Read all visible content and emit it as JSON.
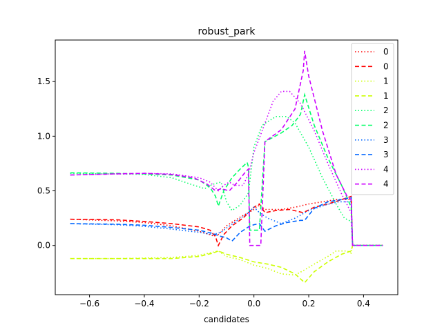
{
  "chart_data": {
    "type": "line",
    "title": "robust_park",
    "xlabel": "candidates",
    "ylabel": "",
    "xlim": [
      -0.725,
      0.525
    ],
    "ylim": [
      -0.45,
      1.88
    ],
    "xticks": [
      -0.6,
      -0.4,
      -0.2,
      0.0,
      0.2,
      0.4
    ],
    "xtick_labels": [
      "−0.6",
      "−0.4",
      "−0.2",
      "0.0",
      "0.2",
      "0.4"
    ],
    "yticks": [
      0.0,
      0.5,
      1.0,
      1.5
    ],
    "ytick_labels": [
      "0.0",
      "0.5",
      "1.0",
      "1.5"
    ],
    "grid": false,
    "legend_position": "top-right",
    "series": [
      {
        "name": "0",
        "color": "#ff0000",
        "style": "dotted",
        "points": [
          [
            -0.67,
            0.24
          ],
          [
            -0.5,
            0.225
          ],
          [
            -0.4,
            0.21
          ],
          [
            -0.3,
            0.18
          ],
          [
            -0.2,
            0.13
          ],
          [
            -0.15,
            0.09
          ],
          [
            -0.13,
            0.1
          ],
          [
            -0.1,
            0.18
          ],
          [
            -0.05,
            0.26
          ],
          [
            -0.02,
            0.3
          ],
          [
            0.0,
            0.33
          ],
          [
            0.02,
            0.37
          ],
          [
            0.04,
            0.33
          ],
          [
            0.1,
            0.33
          ],
          [
            0.15,
            0.35
          ],
          [
            0.2,
            0.38
          ],
          [
            0.25,
            0.4
          ],
          [
            0.3,
            0.42
          ],
          [
            0.34,
            0.42
          ],
          [
            0.355,
            0.42
          ],
          [
            0.36,
            0.0
          ],
          [
            0.47,
            0.0
          ]
        ]
      },
      {
        "name": "0",
        "color": "#ff0000",
        "style": "dashed",
        "points": [
          [
            -0.67,
            0.24
          ],
          [
            -0.5,
            0.235
          ],
          [
            -0.4,
            0.22
          ],
          [
            -0.3,
            0.2
          ],
          [
            -0.2,
            0.17
          ],
          [
            -0.16,
            0.14
          ],
          [
            -0.14,
            0.08
          ],
          [
            -0.13,
            0.0
          ],
          [
            -0.11,
            0.1
          ],
          [
            -0.08,
            0.18
          ],
          [
            -0.04,
            0.25
          ],
          [
            -0.02,
            0.3
          ],
          [
            0.0,
            0.35
          ],
          [
            0.02,
            0.38
          ],
          [
            0.04,
            0.3
          ],
          [
            0.08,
            0.32
          ],
          [
            0.13,
            0.33
          ],
          [
            0.18,
            0.3
          ],
          [
            0.22,
            0.35
          ],
          [
            0.27,
            0.38
          ],
          [
            0.32,
            0.42
          ],
          [
            0.355,
            0.45
          ],
          [
            0.36,
            0.0
          ],
          [
            0.47,
            0.0
          ]
        ]
      },
      {
        "name": "1",
        "color": "#ccff00",
        "style": "dotted",
        "points": [
          [
            -0.67,
            -0.12
          ],
          [
            -0.5,
            -0.12
          ],
          [
            -0.3,
            -0.11
          ],
          [
            -0.2,
            -0.09
          ],
          [
            -0.13,
            -0.05
          ],
          [
            -0.1,
            -0.1
          ],
          [
            -0.05,
            -0.13
          ],
          [
            0.0,
            -0.18
          ],
          [
            0.05,
            -0.21
          ],
          [
            0.1,
            -0.26
          ],
          [
            0.15,
            -0.27
          ],
          [
            0.18,
            -0.23
          ],
          [
            0.22,
            -0.17
          ],
          [
            0.27,
            -0.1
          ],
          [
            0.3,
            -0.05
          ],
          [
            0.34,
            -0.05
          ],
          [
            0.355,
            -0.07
          ],
          [
            0.36,
            0.0
          ],
          [
            0.47,
            0.0
          ]
        ]
      },
      {
        "name": "1",
        "color": "#ccff00",
        "style": "dashed",
        "points": [
          [
            -0.67,
            -0.12
          ],
          [
            -0.5,
            -0.12
          ],
          [
            -0.3,
            -0.12
          ],
          [
            -0.2,
            -0.1
          ],
          [
            -0.15,
            -0.07
          ],
          [
            -0.13,
            -0.05
          ],
          [
            -0.1,
            -0.08
          ],
          [
            -0.05,
            -0.11
          ],
          [
            0.0,
            -0.15
          ],
          [
            0.05,
            -0.17
          ],
          [
            0.1,
            -0.2
          ],
          [
            0.15,
            -0.26
          ],
          [
            0.185,
            -0.34
          ],
          [
            0.22,
            -0.24
          ],
          [
            0.27,
            -0.15
          ],
          [
            0.32,
            -0.08
          ],
          [
            0.355,
            -0.05
          ],
          [
            0.36,
            0.0
          ],
          [
            0.47,
            0.0
          ]
        ]
      },
      {
        "name": "2",
        "color": "#00ff66",
        "style": "dotted",
        "points": [
          [
            -0.67,
            0.66
          ],
          [
            -0.5,
            0.655
          ],
          [
            -0.4,
            0.65
          ],
          [
            -0.3,
            0.62
          ],
          [
            -0.23,
            0.56
          ],
          [
            -0.18,
            0.52
          ],
          [
            -0.15,
            0.56
          ],
          [
            -0.12,
            0.58
          ],
          [
            -0.1,
            0.4
          ],
          [
            -0.08,
            0.32
          ],
          [
            -0.05,
            0.37
          ],
          [
            -0.02,
            0.48
          ],
          [
            0.0,
            0.9
          ],
          [
            0.03,
            1.1
          ],
          [
            0.08,
            1.18
          ],
          [
            0.12,
            1.18
          ],
          [
            0.15,
            1.12
          ],
          [
            0.2,
            0.9
          ],
          [
            0.25,
            0.62
          ],
          [
            0.3,
            0.38
          ],
          [
            0.33,
            0.25
          ],
          [
            0.355,
            0.22
          ],
          [
            0.36,
            0.0
          ],
          [
            0.47,
            0.0
          ]
        ]
      },
      {
        "name": "2",
        "color": "#00ff66",
        "style": "dashed",
        "points": [
          [
            -0.67,
            0.665
          ],
          [
            -0.5,
            0.66
          ],
          [
            -0.4,
            0.655
          ],
          [
            -0.3,
            0.645
          ],
          [
            -0.2,
            0.6
          ],
          [
            -0.16,
            0.53
          ],
          [
            -0.14,
            0.45
          ],
          [
            -0.13,
            0.36
          ],
          [
            -0.11,
            0.5
          ],
          [
            -0.08,
            0.62
          ],
          [
            -0.05,
            0.7
          ],
          [
            -0.025,
            0.76
          ],
          [
            -0.02,
            0.72
          ],
          [
            -0.015,
            0.14
          ],
          [
            0.02,
            0.14
          ],
          [
            0.04,
            0.95
          ],
          [
            0.1,
            1.03
          ],
          [
            0.14,
            1.1
          ],
          [
            0.17,
            1.2
          ],
          [
            0.185,
            1.38
          ],
          [
            0.22,
            1.1
          ],
          [
            0.27,
            0.8
          ],
          [
            0.32,
            0.55
          ],
          [
            0.355,
            0.35
          ],
          [
            0.36,
            0.0
          ],
          [
            0.47,
            0.0
          ]
        ]
      },
      {
        "name": "3",
        "color": "#0066ff",
        "style": "dotted",
        "points": [
          [
            -0.67,
            0.2
          ],
          [
            -0.5,
            0.19
          ],
          [
            -0.4,
            0.175
          ],
          [
            -0.3,
            0.15
          ],
          [
            -0.2,
            0.12
          ],
          [
            -0.15,
            0.1
          ],
          [
            -0.12,
            0.12
          ],
          [
            -0.1,
            0.16
          ],
          [
            -0.06,
            0.23
          ],
          [
            -0.02,
            0.3
          ],
          [
            0.0,
            0.35
          ],
          [
            0.02,
            0.3
          ],
          [
            0.05,
            0.25
          ],
          [
            0.1,
            0.2
          ],
          [
            0.15,
            0.25
          ],
          [
            0.2,
            0.32
          ],
          [
            0.26,
            0.37
          ],
          [
            0.31,
            0.4
          ],
          [
            0.355,
            0.4
          ],
          [
            0.36,
            0.0
          ],
          [
            0.47,
            0.0
          ]
        ]
      },
      {
        "name": "3",
        "color": "#0066ff",
        "style": "dashed",
        "points": [
          [
            -0.67,
            0.2
          ],
          [
            -0.5,
            0.195
          ],
          [
            -0.4,
            0.185
          ],
          [
            -0.3,
            0.165
          ],
          [
            -0.2,
            0.14
          ],
          [
            -0.15,
            0.11
          ],
          [
            -0.13,
            0.09
          ],
          [
            -0.1,
            0.07
          ],
          [
            -0.08,
            0.04
          ],
          [
            -0.05,
            0.12
          ],
          [
            -0.02,
            0.17
          ],
          [
            0.0,
            0.19
          ],
          [
            0.02,
            0.2
          ],
          [
            0.04,
            0.13
          ],
          [
            0.08,
            0.18
          ],
          [
            0.12,
            0.21
          ],
          [
            0.17,
            0.23
          ],
          [
            0.185,
            0.23
          ],
          [
            0.22,
            0.34
          ],
          [
            0.27,
            0.4
          ],
          [
            0.32,
            0.42
          ],
          [
            0.355,
            0.44
          ],
          [
            0.36,
            0.0
          ],
          [
            0.47,
            0.0
          ]
        ]
      },
      {
        "name": "4",
        "color": "#cc00ff",
        "style": "dotted",
        "points": [
          [
            -0.67,
            0.645
          ],
          [
            -0.5,
            0.655
          ],
          [
            -0.4,
            0.66
          ],
          [
            -0.3,
            0.655
          ],
          [
            -0.2,
            0.62
          ],
          [
            -0.16,
            0.58
          ],
          [
            -0.13,
            0.5
          ],
          [
            -0.11,
            0.55
          ],
          [
            -0.09,
            0.58
          ],
          [
            -0.07,
            0.55
          ],
          [
            -0.04,
            0.55
          ],
          [
            -0.02,
            0.65
          ],
          [
            0.0,
            0.85
          ],
          [
            0.03,
            1.05
          ],
          [
            0.07,
            1.32
          ],
          [
            0.1,
            1.41
          ],
          [
            0.13,
            1.41
          ],
          [
            0.17,
            1.3
          ],
          [
            0.22,
            1.05
          ],
          [
            0.27,
            0.75
          ],
          [
            0.32,
            0.47
          ],
          [
            0.355,
            0.3
          ],
          [
            0.36,
            0.0
          ],
          [
            0.47,
            0.0
          ]
        ]
      },
      {
        "name": "4",
        "color": "#cc00ff",
        "style": "dashed",
        "points": [
          [
            -0.67,
            0.645
          ],
          [
            -0.5,
            0.655
          ],
          [
            -0.4,
            0.66
          ],
          [
            -0.3,
            0.65
          ],
          [
            -0.22,
            0.62
          ],
          [
            -0.17,
            0.56
          ],
          [
            -0.14,
            0.5
          ],
          [
            -0.12,
            0.52
          ],
          [
            -0.09,
            0.5
          ],
          [
            -0.06,
            0.58
          ],
          [
            -0.035,
            0.66
          ],
          [
            -0.02,
            0.7
          ],
          [
            -0.015,
            0.0
          ],
          [
            0.025,
            0.0
          ],
          [
            0.04,
            0.95
          ],
          [
            0.1,
            1.06
          ],
          [
            0.15,
            1.25
          ],
          [
            0.18,
            1.6
          ],
          [
            0.185,
            1.78
          ],
          [
            0.2,
            1.55
          ],
          [
            0.25,
            1.05
          ],
          [
            0.3,
            0.65
          ],
          [
            0.34,
            0.45
          ],
          [
            0.355,
            0.42
          ],
          [
            0.36,
            0.0
          ],
          [
            0.47,
            0.0
          ]
        ]
      }
    ]
  }
}
